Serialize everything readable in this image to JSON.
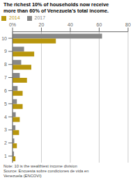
{
  "chart_data": {
    "type": "bar",
    "orientation": "horizontal",
    "title": "The richest 10% of households now receive\nmore than 60% of Venezuela’s total income.",
    "categories": [
      "10",
      "9",
      "8",
      "7",
      "6",
      "5",
      "4",
      "3",
      "2",
      "1"
    ],
    "series": [
      {
        "name": "2017",
        "color": "#888888",
        "values": [
          62,
          8,
          6,
          5,
          3.5,
          3,
          2.2,
          2,
          1.2,
          1
        ]
      },
      {
        "name": "2014",
        "color": "#b8960c",
        "values": [
          30,
          15,
          13,
          10,
          7,
          7,
          5,
          4.5,
          3,
          2
        ]
      }
    ],
    "xlim": [
      0,
      80
    ],
    "xticks": [
      {
        "value": 0,
        "label": "0%"
      },
      20,
      40,
      60,
      80
    ],
    "grid": true,
    "legend": "upper left",
    "annotations": [
      "Note: 10 is the wealthiest income division\nSource: Encuesta sobre condiciones de vida en\nVenezuela (ENCOVI)"
    ]
  }
}
